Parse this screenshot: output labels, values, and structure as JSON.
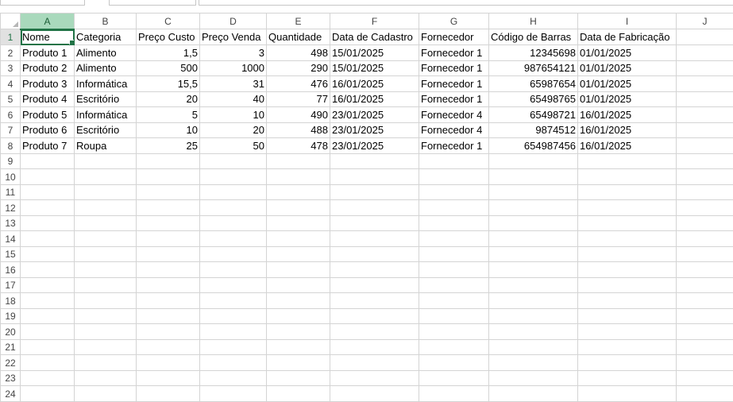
{
  "columns": [
    "A",
    "B",
    "C",
    "D",
    "E",
    "F",
    "G",
    "H",
    "I",
    "J"
  ],
  "active_cell": "A1",
  "header_row": [
    "Nome",
    "Categoria",
    "Preço Custo",
    "Preço Venda",
    "Quantidade",
    "Data de Cadastro",
    "Fornecedor",
    "Código de Barras",
    "Data de Fabricação"
  ],
  "rows": [
    [
      "Produto 1",
      "Alimento",
      "1,5",
      "3",
      "498",
      "15/01/2025",
      "Fornecedor 1",
      "12345698",
      "01/01/2025"
    ],
    [
      "Produto 2",
      "Alimento",
      "500",
      "1000",
      "290",
      "15/01/2025",
      "Fornecedor 1",
      "987654121",
      "01/01/2025"
    ],
    [
      "Produto 3",
      "Informática",
      "15,5",
      "31",
      "476",
      "16/01/2025",
      "Fornecedor 1",
      "65987654",
      "01/01/2025"
    ],
    [
      "Produto 4",
      "Escritório",
      "20",
      "40",
      "77",
      "16/01/2025",
      "Fornecedor 1",
      "65498765",
      "01/01/2025"
    ],
    [
      "Produto 5",
      "Informática",
      "5",
      "10",
      "490",
      "23/01/2025",
      "Fornecedor 4",
      "65498721",
      "16/01/2025"
    ],
    [
      "Produto 6",
      "Escritório",
      "10",
      "20",
      "488",
      "23/01/2025",
      "Fornecedor 4",
      "9874512",
      "16/01/2025"
    ],
    [
      "Produto 7",
      "Roupa",
      "25",
      "50",
      "478",
      "23/01/2025",
      "Fornecedor 1",
      "654987456",
      "16/01/2025"
    ]
  ],
  "row_numbers": [
    "1",
    "2",
    "3",
    "4",
    "5",
    "6",
    "7",
    "8",
    "9",
    "10",
    "11",
    "12",
    "13",
    "14",
    "15",
    "16",
    "17",
    "18",
    "19",
    "20",
    "21",
    "22",
    "23",
    "24"
  ],
  "colors": {
    "accent": "#217346",
    "header_selected": "#a9d9bc",
    "gridline": "#d4d4d4"
  }
}
